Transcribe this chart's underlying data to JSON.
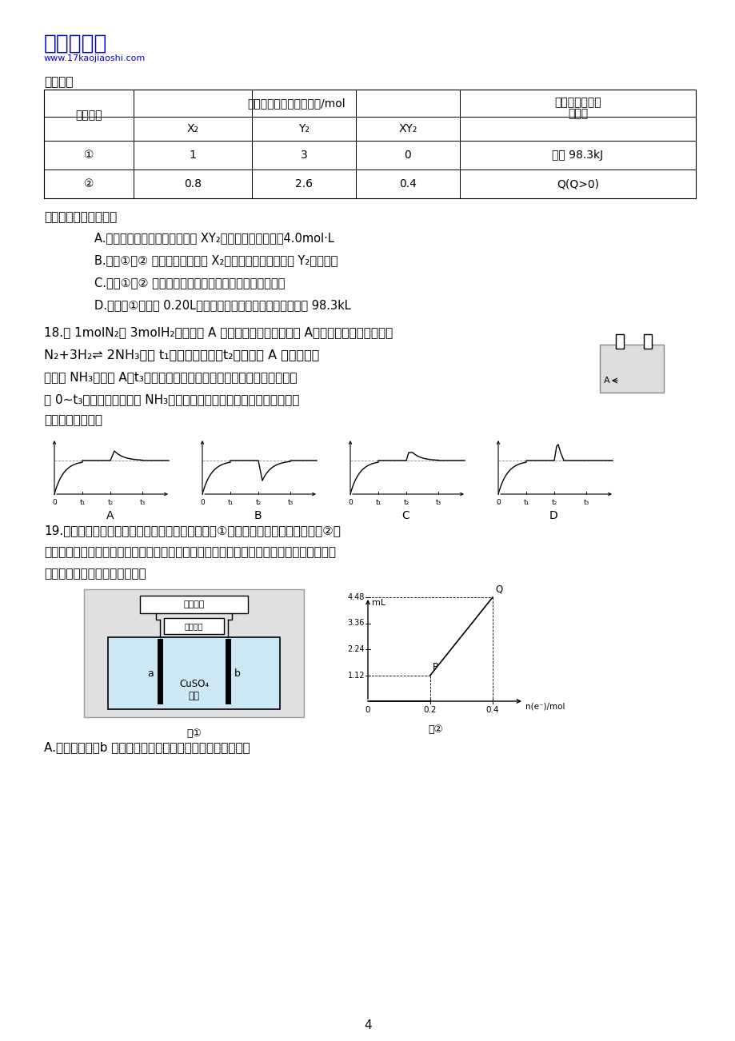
{
  "bg_color": "#ffffff",
  "logo_text": "一起考教师",
  "logo_url": "www.17kaojiaoshi.com",
  "logo_color": "#0000cc",
  "table_intro": "表所示：",
  "col0_header": "容器编号",
  "col14_header": "起始时各物质的物质的量/mol",
  "col_last_header1": "平衡时体系的能",
  "col_last_header2": "量变化",
  "sub_x2": "X₂",
  "sub_y2": "Y₂",
  "sub_xy2": "XY₂",
  "row1_data": [
    "①",
    "1",
    "3",
    "0",
    "放热 98.3kJ"
  ],
  "row2_data": [
    "②",
    "0.8",
    "2.6",
    "0.4",
    "Q(Q>0)"
  ],
  "question_intro": "下列叙述不正确的是：",
  "choiceA": "A.反应达到平衡时，两个容器中 XY₂的物质的量浓度均为4.0mol·L",
  "choiceB": "B.容器①、② 中反应达到平衡时 X₂的转化率相等，且大于 Y₂的转化率",
  "choiceC": "C.容器①、② 中反应达到平衡时同种物质的体积分数相等",
  "choiceD": "D.若容器①体积为 0.20L，则反应达到平衡时放出的热量大于 98.3kL",
  "q18_text1": "18.将 1molN₂和 3molH₂混合后由 A 口充入右图容器中，关闭 A，在一定条件下发生反应",
  "q18_formula": "N₂+3H₂⇌ 2NH₃，在 t₁时刻达到平衡，t₂时刻再从 A 口快速充入",
  "q18_text2": "一定量 NH₃后关闭 A，t₃时刻重新达到平衡（整个过程保持恒温恒压）。",
  "q18_text3": "在 0~t₃时间段内混合气中 NH₃的体积分数（纵坐标）随时间（横坐标）",
  "q18_text4": "变化曲线正确的是",
  "q19_text1": "19.用惰性电极电解一定量的硫酸铜溶液，装置如图①。电解过程中的实验数据如图②，",
  "q19_text2": "横坐标表示电解过程中转移电子的物质的量，纵坐标表示电解过程中产生气体的总体积（标",
  "q19_text3": "准状况）。则下列说法正确的是",
  "q19_choiceA": "A.电解过程中，b 电极表面先有红色物质析出，后有气泡产生",
  "page_num": "4"
}
